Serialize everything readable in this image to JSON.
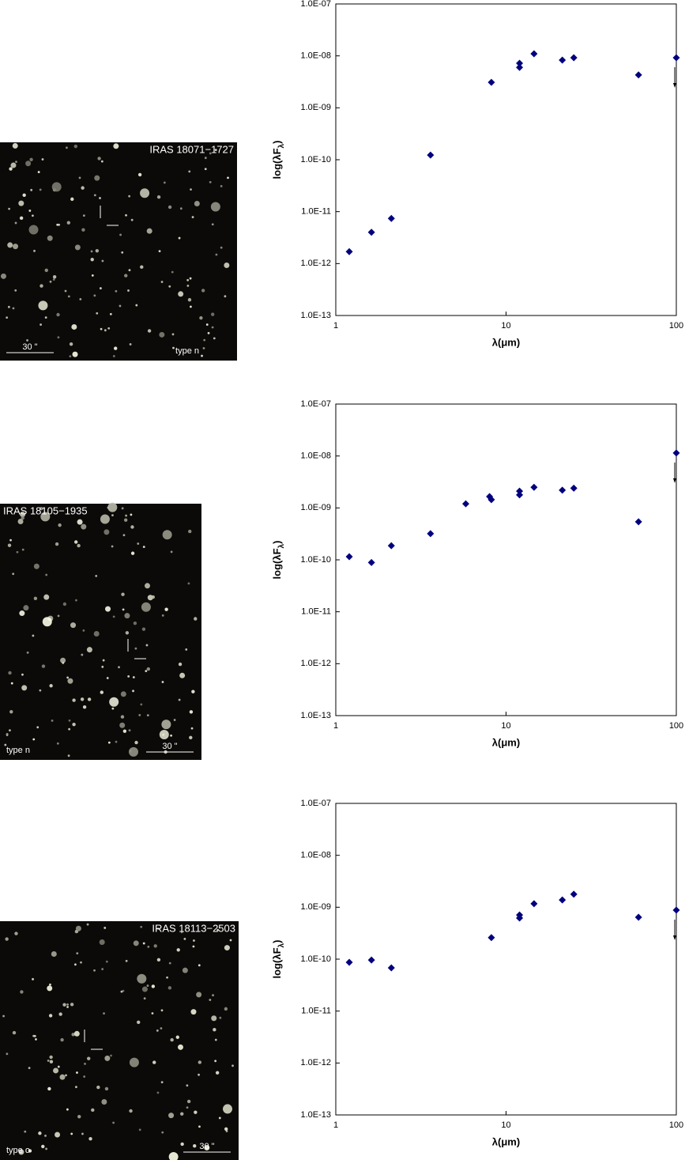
{
  "panels": [
    {
      "label": "IRAS 18071−1727",
      "scale": "30 \"",
      "class": "type n"
    },
    {
      "label": "IRAS 18105−1935",
      "scale": "30 \"",
      "class": "type n"
    },
    {
      "label": "IRAS 18113−2503",
      "scale": "30 \"",
      "class": "type o"
    }
  ],
  "chart_data": [
    {
      "type": "scatter",
      "xlabel": "λ(μm)",
      "ylabel": [
        "log(λF",
        "λ",
        ")"
      ],
      "log_x": true,
      "log_y": true,
      "color": "#00007f",
      "x": [
        1.2,
        1.62,
        2.12,
        3.6,
        8.2,
        12,
        12,
        14.6,
        21.4,
        25,
        60,
        100
      ],
      "values": [
        1.7e-12,
        4e-12,
        7.4e-12,
        1.23e-10,
        3.1e-09,
        7.2e-09,
        6e-09,
        1.1e-08,
        8.3e-09,
        9.2e-09,
        4.3e-09,
        9.2e-09
      ],
      "upper_limits": [
        11
      ],
      "xlim": [
        1,
        100
      ],
      "xticks": [
        1,
        10,
        100
      ],
      "ylim": [
        1e-13,
        1e-07
      ],
      "yticks": [
        {
          "value": 1e-13,
          "label": "1.0E-13"
        },
        {
          "value": 1e-12,
          "label": "1.0E-12"
        },
        {
          "value": 1e-11,
          "label": "1.0E-11"
        },
        {
          "value": 1e-10,
          "label": "1.0E-10"
        },
        {
          "value": 1e-09,
          "label": "1.0E-09"
        },
        {
          "value": 1e-08,
          "label": "1.0E-08"
        },
        {
          "value": 1e-07,
          "label": "1.0E-07"
        }
      ]
    },
    {
      "type": "scatter",
      "xlabel": "λ(μm)",
      "ylabel": [
        "log(λF",
        "λ",
        ")"
      ],
      "log_x": true,
      "log_y": true,
      "color": "#00007f",
      "x": [
        1.2,
        1.62,
        2.12,
        3.6,
        5.8,
        8.0,
        8.2,
        12,
        12,
        14.6,
        21.4,
        25,
        60,
        100
      ],
      "values": [
        1.15e-10,
        8.9e-11,
        1.87e-10,
        3.2e-10,
        1.2e-09,
        1.65e-09,
        1.44e-09,
        1.78e-09,
        2.1e-09,
        2.5e-09,
        2.2e-09,
        2.4e-09,
        5.4e-10,
        1.14e-08
      ],
      "upper_limits": [
        13
      ],
      "xlim": [
        1,
        100
      ],
      "xticks": [
        1,
        10,
        100
      ],
      "ylim": [
        1e-13,
        1e-07
      ],
      "yticks": [
        {
          "value": 1e-13,
          "label": "1.0E-13"
        },
        {
          "value": 1e-12,
          "label": "1.0E-12"
        },
        {
          "value": 1e-11,
          "label": "1.0E-11"
        },
        {
          "value": 1e-10,
          "label": "1.0E-10"
        },
        {
          "value": 1e-09,
          "label": "1.0E-09"
        },
        {
          "value": 1e-08,
          "label": "1.0E-08"
        },
        {
          "value": 1e-07,
          "label": "1.0E-07"
        }
      ]
    },
    {
      "type": "scatter",
      "xlabel": "λ(μm)",
      "ylabel": [
        "log(λF",
        "λ",
        ")"
      ],
      "log_x": true,
      "log_y": true,
      "color": "#00007f",
      "x": [
        1.2,
        1.62,
        2.12,
        8.2,
        12,
        12,
        14.6,
        21.4,
        25,
        60,
        100
      ],
      "values": [
        8.7e-11,
        9.6e-11,
        6.8e-11,
        2.6e-10,
        7.1e-10,
        6.2e-10,
        1.17e-09,
        1.38e-09,
        1.78e-09,
        6.4e-10,
        8.8e-10
      ],
      "upper_limits": [
        10
      ],
      "xlim": [
        1,
        100
      ],
      "xticks": [
        1,
        10,
        100
      ],
      "ylim": [
        1e-13,
        1e-07
      ],
      "yticks": [
        {
          "value": 1e-13,
          "label": "1.0E-13"
        },
        {
          "value": 1e-12,
          "label": "1.0E-12"
        },
        {
          "value": 1e-11,
          "label": "1.0E-11"
        },
        {
          "value": 1e-10,
          "label": "1.0E-10"
        },
        {
          "value": 1e-09,
          "label": "1.0E-09"
        },
        {
          "value": 1e-08,
          "label": "1.0E-08"
        },
        {
          "value": 1e-07,
          "label": "1.0E-07"
        }
      ]
    }
  ]
}
